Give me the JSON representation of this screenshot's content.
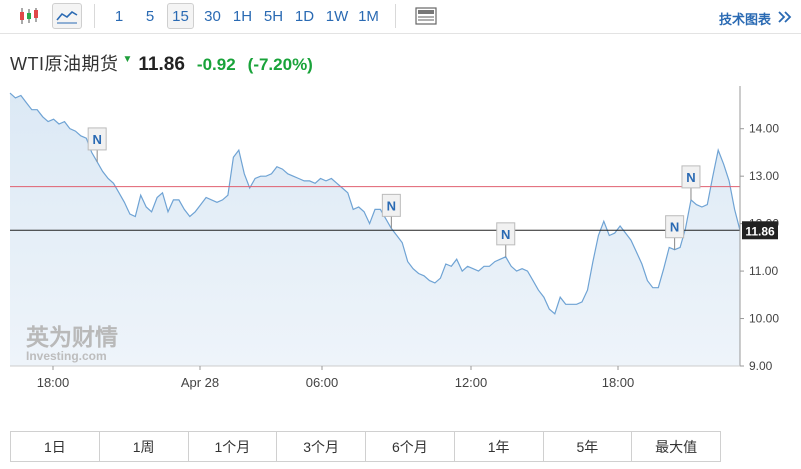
{
  "toolbar": {
    "intervals": [
      "1",
      "5",
      "15",
      "30",
      "1H",
      "5H",
      "1D",
      "1W",
      "1M"
    ],
    "active_interval": "15",
    "tech_chart_label": "技术图表"
  },
  "quote": {
    "name": "WTI原油期货",
    "price": "11.86",
    "change": "-0.92",
    "change_pct": "(-7.20%)",
    "down_color": "#19a33a"
  },
  "watermark": {
    "cn": "英为财情",
    "en": "Investing.com"
  },
  "chart_data": {
    "type": "area",
    "x_ticks": [
      "18:00",
      "Apr 28",
      "06:00",
      "12:00",
      "18:00"
    ],
    "y_ticks": [
      "14.00",
      "13.00",
      "12.00",
      "11.00",
      "10.00",
      "9.00"
    ],
    "ylim": [
      9.0,
      14.9
    ],
    "current_price": 11.86,
    "reference_level": 12.78,
    "news_marker_label": "N",
    "series": [
      {
        "values": [
          14.75,
          14.65,
          14.7,
          14.55,
          14.4,
          14.4,
          14.25,
          14.15,
          14.2,
          14.1,
          14.15,
          14.0,
          13.95,
          13.85,
          13.8,
          13.5,
          13.3,
          13.1,
          12.95,
          12.85,
          12.65,
          12.45,
          12.2,
          12.15,
          12.6,
          12.35,
          12.25,
          12.55,
          12.65,
          12.25,
          12.5,
          12.5,
          12.3,
          12.15,
          12.25,
          12.4,
          12.55,
          12.5,
          12.45,
          12.5,
          12.6,
          13.4,
          13.55,
          13.05,
          12.75,
          12.95,
          13.0,
          13.0,
          13.05,
          13.2,
          13.15,
          13.05,
          13.0,
          12.95,
          12.9,
          12.9,
          12.85,
          12.95,
          12.9,
          12.95,
          12.85,
          12.75,
          12.65,
          12.3,
          12.35,
          12.25,
          12.0,
          12.3,
          12.3,
          12.1,
          11.9,
          11.75,
          11.6,
          11.2,
          11.05,
          10.95,
          10.9,
          10.8,
          10.75,
          10.85,
          11.15,
          11.1,
          11.25,
          11.0,
          11.1,
          11.05,
          11.0,
          11.1,
          11.1,
          11.2,
          11.25,
          11.3,
          11.1,
          11.0,
          11.05,
          11.0,
          10.8,
          10.6,
          10.45,
          10.2,
          10.1,
          10.45,
          10.3,
          10.3,
          10.3,
          10.35,
          10.6,
          11.2,
          11.75,
          12.05,
          11.75,
          11.8,
          11.95,
          11.8,
          11.65,
          11.4,
          11.15,
          10.8,
          10.65,
          10.65,
          11.05,
          11.5,
          11.45,
          11.5,
          11.9,
          12.5,
          12.4,
          12.35,
          12.4,
          13.0,
          13.55,
          13.25,
          12.9,
          12.3,
          11.86
        ]
      }
    ],
    "news_marker_indices": [
      16,
      70,
      91,
      122,
      125
    ]
  },
  "range_buttons": [
    "1日",
    "1周",
    "1个月",
    "3个月",
    "6个月",
    "1年",
    "5年",
    "最大值"
  ]
}
